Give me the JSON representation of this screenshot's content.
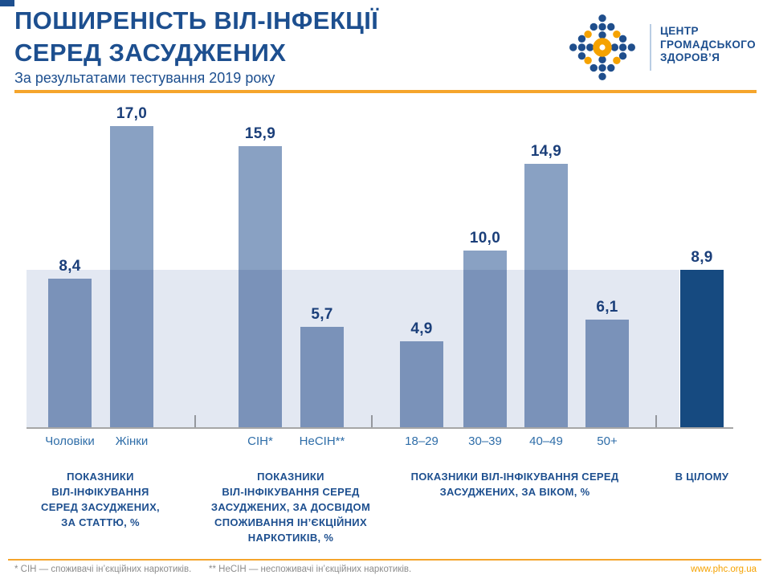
{
  "header": {
    "title_line1": "ПОШИРЕНІСТЬ ВІЛ-ІНФЕКЦІЇ",
    "title_line2": "СЕРЕД ЗАСУДЖЕНИХ",
    "subtitle": "За результатами тестування 2019 року"
  },
  "logo": {
    "org_line1": "ЦЕНТР",
    "org_line2": "ГРОМАДСЬКОГО",
    "org_line3": "ЗДОРОВ’Я"
  },
  "chart_data": {
    "type": "bar",
    "title": "ПОШИРЕНІСТЬ ВІЛ-ІНФЕКЦІЇ СЕРЕД ЗАСУДЖЕНИХ",
    "subtitle": "За результатами тестування 2019 року",
    "unit": "%",
    "ylim": [
      0,
      18
    ],
    "grid": false,
    "legend": false,
    "overall_reference": {
      "value": 8.9,
      "label": "8,9",
      "note": "light band across chart at overall level"
    },
    "groups": [
      {
        "name": "ПОКАЗНИКИ ВІЛ-ІНФІКУВАННЯ СЕРЕД ЗАСУДЖЕНИХ, ЗА СТАТТЮ, %",
        "label_lines": [
          "ПОКАЗНИКИ",
          "ВІЛ-ІНФІКУВАННЯ",
          "СЕРЕД ЗАСУДЖЕНИХ,",
          "ЗА СТАТТЮ, %"
        ],
        "bars": [
          {
            "category": "Чоловіки",
            "value": 8.4,
            "label": "8,4"
          },
          {
            "category": "Жінки",
            "value": 17.0,
            "label": "17,0"
          }
        ]
      },
      {
        "name": "ПОКАЗНИКИ ВІЛ-ІНФІКУВАННЯ СЕРЕД ЗАСУДЖЕНИХ, ЗА ДОСВІДОМ СПОЖИВАННЯ ІН’ЄКЦІЙНИХ НАРКОТИКІВ, %",
        "label_lines": [
          "ПОКАЗНИКИ",
          "ВІЛ-ІНФІКУВАННЯ СЕРЕД",
          "ЗАСУДЖЕНИХ, ЗА ДОСВІДОМ",
          "СПОЖИВАННЯ ІН’ЄКЦІЙНИХ",
          "НАРКОТИКІВ, %"
        ],
        "bars": [
          {
            "category": "СІН*",
            "value": 15.9,
            "label": "15,9"
          },
          {
            "category": "НеСІН**",
            "value": 5.7,
            "label": "5,7"
          }
        ]
      },
      {
        "name": "ПОКАЗНИКИ ВІЛ-ІНФІКУВАННЯ СЕРЕД ЗАСУДЖЕНИХ, ЗА ВІКОМ, %",
        "label_lines": [
          "ПОКАЗНИКИ ВІЛ-ІНФІКУВАННЯ СЕРЕД",
          "ЗАСУДЖЕНИХ, ЗА ВІКОМ, %"
        ],
        "bars": [
          {
            "category": "18–29",
            "value": 4.9,
            "label": "4,9"
          },
          {
            "category": "30–39",
            "value": 10.0,
            "label": "10,0"
          },
          {
            "category": "40–49",
            "value": 14.9,
            "label": "14,9"
          },
          {
            "category": "50+",
            "value": 6.1,
            "label": "6,1"
          }
        ]
      },
      {
        "name": "В ЦІЛОМУ",
        "label_lines": [
          "В ЦІЛОМУ"
        ],
        "bars": [
          {
            "category": "",
            "value": 8.9,
            "label": "8,9",
            "emphasis": true
          }
        ]
      }
    ]
  },
  "footer": {
    "note1": "* СІН — споживачі ін’єкційних наркотиків.",
    "note2": "** НеСІН — неспоживачі ін’єкційних наркотиків.",
    "website": "www.phc.org.ua"
  },
  "colors": {
    "navy": "#1D4F8F",
    "value_navy": "#1B3F7A",
    "bar_blue": "#89A1C3",
    "bar_dark": "#164A80",
    "band_blue": "#E3E8F2",
    "category_blue": "#2E6DA8",
    "axis_gray": "#A6A6A6",
    "footer_gray": "#8C8C8C",
    "orange": "#F5A52C",
    "orange_deep": "#F5A200"
  }
}
